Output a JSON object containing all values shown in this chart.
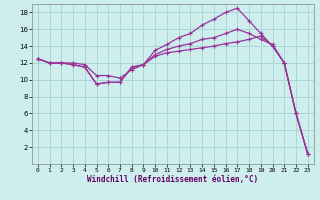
{
  "xlabel": "Windchill (Refroidissement éolien,°C)",
  "background_color": "#ceeeed",
  "grid_color": "#aad6d6",
  "line_color": "#993399",
  "xlim": [
    -0.5,
    23.5
  ],
  "ylim": [
    0,
    19
  ],
  "xticks": [
    0,
    1,
    2,
    3,
    4,
    5,
    6,
    7,
    8,
    9,
    10,
    11,
    12,
    13,
    14,
    15,
    16,
    17,
    18,
    19,
    20,
    21,
    22,
    23
  ],
  "yticks": [
    2,
    4,
    6,
    8,
    10,
    12,
    14,
    16,
    18
  ],
  "ytick_labels": [
    "2",
    "4",
    "6",
    "8",
    "10",
    "12",
    "14",
    "16",
    "18"
  ],
  "line1_x": [
    0,
    1,
    2,
    3,
    4,
    5,
    6,
    7,
    8,
    9,
    10,
    11,
    12,
    13,
    14,
    15,
    16,
    17,
    18,
    19,
    20,
    21,
    22,
    23
  ],
  "line1_y": [
    12.5,
    12.0,
    12.0,
    11.8,
    11.5,
    9.5,
    9.7,
    9.7,
    11.5,
    11.8,
    12.8,
    13.2,
    13.4,
    13.6,
    13.8,
    14.0,
    14.3,
    14.5,
    14.8,
    15.2,
    14.0,
    12.0,
    6.0,
    1.2
  ],
  "line2_x": [
    0,
    1,
    2,
    3,
    4,
    5,
    6,
    7,
    8,
    9,
    10,
    11,
    12,
    13,
    14,
    15,
    16,
    17,
    18,
    19,
    20,
    21,
    22,
    23
  ],
  "line2_y": [
    12.5,
    12.0,
    12.0,
    11.8,
    11.5,
    9.5,
    9.7,
    9.7,
    11.5,
    11.8,
    13.5,
    14.2,
    15.0,
    15.5,
    16.5,
    17.2,
    18.0,
    18.5,
    17.0,
    15.5,
    14.0,
    12.0,
    6.0,
    1.2
  ],
  "line3_x": [
    0,
    1,
    2,
    3,
    4,
    5,
    6,
    7,
    8,
    9,
    10,
    11,
    12,
    13,
    14,
    15,
    16,
    17,
    18,
    19,
    20,
    21,
    22,
    23
  ],
  "line3_y": [
    12.5,
    12.0,
    12.0,
    12.0,
    11.8,
    10.5,
    10.5,
    10.2,
    11.2,
    11.8,
    13.0,
    13.6,
    14.0,
    14.3,
    14.8,
    15.0,
    15.5,
    16.0,
    15.5,
    14.8,
    14.2,
    12.0,
    6.0,
    1.2
  ]
}
